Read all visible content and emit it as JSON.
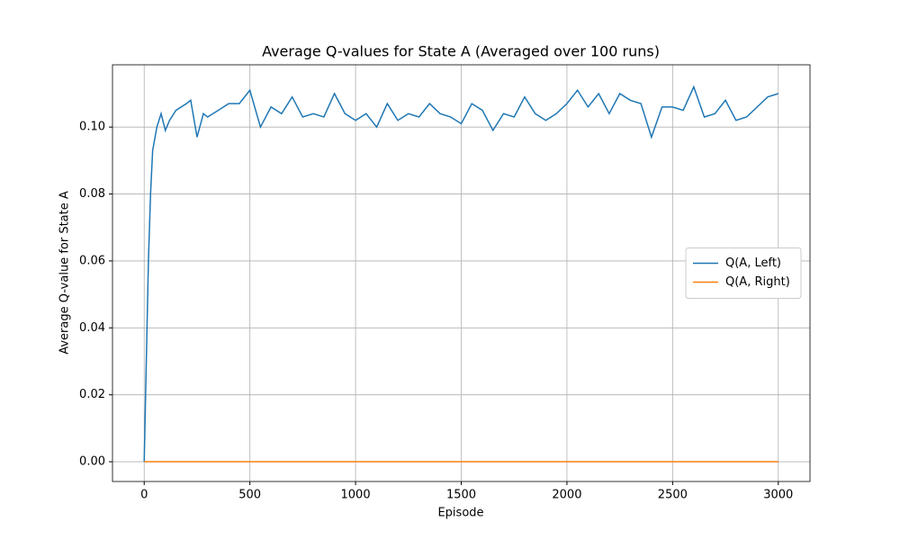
{
  "chart_data": {
    "type": "line",
    "title": "Average Q-values for State A (Averaged over 100 runs)",
    "x_label": "Episode",
    "y_label": "Average Q-value for State A",
    "x": [
      0,
      10,
      20,
      30,
      40,
      60,
      80,
      100,
      120,
      150,
      200,
      220,
      250,
      280,
      300,
      350,
      400,
      450,
      500,
      550,
      600,
      650,
      700,
      750,
      800,
      850,
      900,
      950,
      1000,
      1050,
      1100,
      1150,
      1200,
      1250,
      1300,
      1350,
      1400,
      1450,
      1500,
      1550,
      1600,
      1650,
      1700,
      1750,
      1800,
      1850,
      1900,
      1950,
      2000,
      2050,
      2100,
      2150,
      2200,
      2250,
      2300,
      2350,
      2400,
      2450,
      2500,
      2550,
      2600,
      2650,
      2700,
      2750,
      2800,
      2850,
      2900,
      2950,
      3000
    ],
    "series": [
      {
        "name": "Q(A, Left)",
        "color": "#1f77b4",
        "values": [
          0,
          0.03,
          0.06,
          0.08,
          0.093,
          0.1,
          0.104,
          0.099,
          0.102,
          0.105,
          0.107,
          0.108,
          0.097,
          0.104,
          0.103,
          0.105,
          0.107,
          0.107,
          0.111,
          0.1,
          0.106,
          0.104,
          0.109,
          0.103,
          0.104,
          0.103,
          0.11,
          0.104,
          0.102,
          0.104,
          0.1,
          0.107,
          0.102,
          0.104,
          0.103,
          0.107,
          0.104,
          0.103,
          0.101,
          0.107,
          0.105,
          0.099,
          0.104,
          0.103,
          0.109,
          0.104,
          0.102,
          0.104,
          0.107,
          0.111,
          0.106,
          0.11,
          0.104,
          0.11,
          0.108,
          0.107,
          0.097,
          0.106,
          0.106,
          0.105,
          0.112,
          0.103,
          0.104,
          0.108,
          0.102,
          0.103,
          0.106,
          0.109,
          0.11
        ]
      },
      {
        "name": "Q(A, Right)",
        "color": "#ff7f0e",
        "values": [
          0,
          0,
          0,
          0,
          0,
          0,
          0,
          0,
          0,
          0,
          0,
          0,
          0,
          0,
          0,
          0,
          0,
          0,
          0,
          0,
          0,
          0,
          0,
          0,
          0,
          0,
          0,
          0,
          0,
          0,
          0,
          0,
          0,
          0,
          0,
          0,
          0,
          0,
          0,
          0,
          0,
          0,
          0,
          0,
          0,
          0,
          0,
          0,
          0,
          0,
          0,
          0,
          0,
          0,
          0,
          0,
          0,
          0,
          0,
          0,
          0,
          0,
          0,
          0,
          0,
          0,
          0,
          0,
          0
        ]
      }
    ],
    "xlim": [
      -150,
      3150
    ],
    "xticks": [
      0,
      500,
      1000,
      1500,
      2000,
      2500,
      3000
    ],
    "ylim": [
      -0.0059,
      0.1186
    ],
    "yticks": [
      {
        "value": 0,
        "label": "0.00"
      },
      {
        "value": 0.02,
        "label": "0.02"
      },
      {
        "value": 0.04,
        "label": "0.04"
      },
      {
        "value": 0.06,
        "label": "0.06"
      },
      {
        "value": 0.08,
        "label": "0.08"
      },
      {
        "value": 0.1,
        "label": "0.10"
      }
    ],
    "grid": true,
    "legend": "center right"
  }
}
